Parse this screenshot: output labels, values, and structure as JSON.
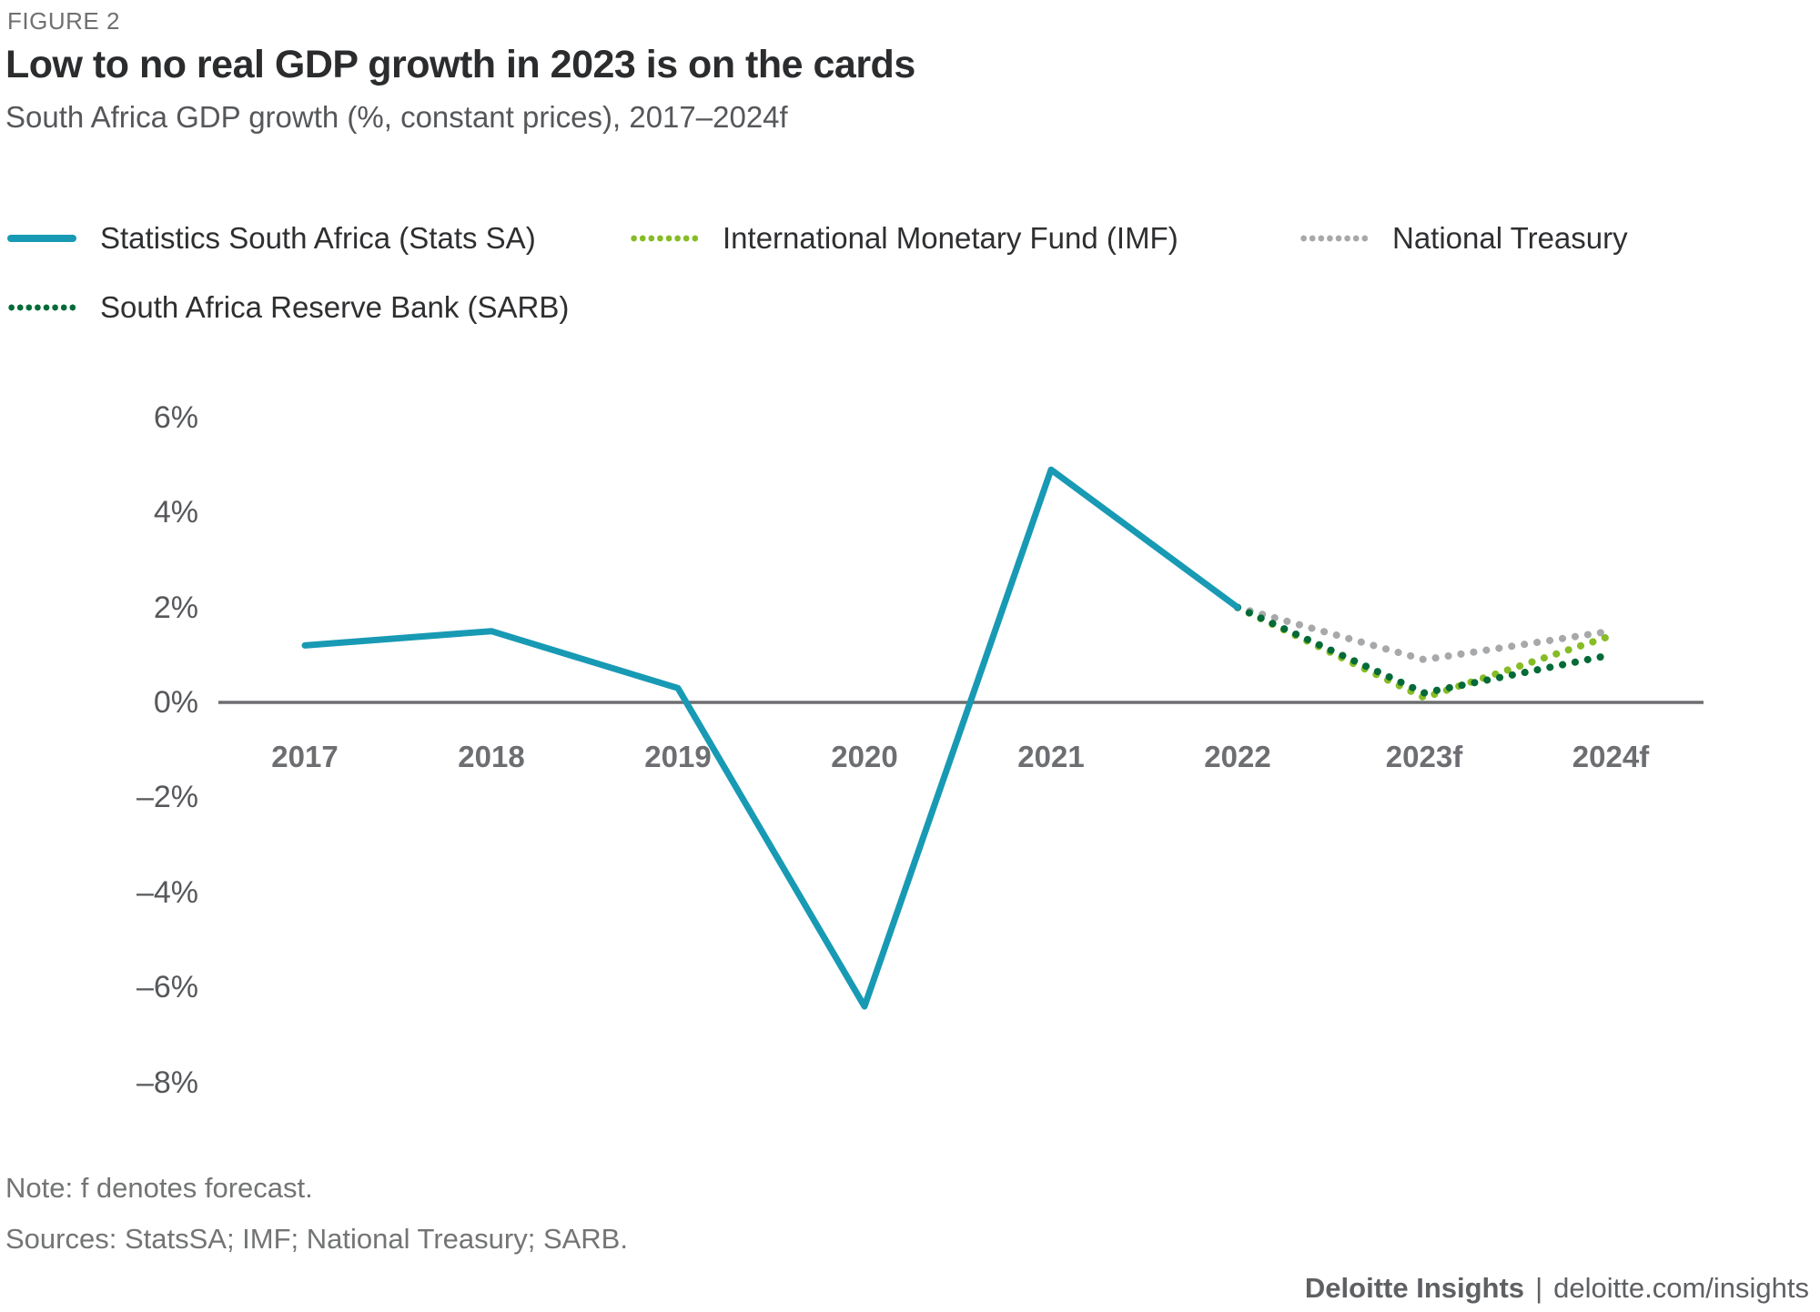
{
  "figure_label": "FIGURE 2",
  "title": "Low to no real GDP growth in 2023 is on the cards",
  "subtitle": "South Africa GDP growth (%, constant prices), 2017–2024f",
  "legend": [
    {
      "label": "Statistics South Africa (Stats SA)",
      "style": "solid",
      "color": "#189ab4"
    },
    {
      "label": "International Monetary Fund (IMF)",
      "style": "dotted",
      "color": "#86bc25"
    },
    {
      "label": "National Treasury",
      "style": "dotted",
      "color": "#a7a8aa"
    },
    {
      "label": "South Africa Reserve Bank (SARB)",
      "style": "dotted",
      "color": "#046a38"
    }
  ],
  "chart_data": {
    "type": "line",
    "title": "Low to no real GDP growth in 2023 is on the cards",
    "subtitle": "South Africa GDP growth (%, constant prices), 2017–2024f",
    "categories": [
      "2017",
      "2018",
      "2019",
      "2020",
      "2021",
      "2022",
      "2023f",
      "2024f"
    ],
    "series": [
      {
        "name": "National Treasury",
        "color": "#a7a8aa",
        "style": "dotted",
        "values": [
          null,
          null,
          null,
          null,
          null,
          2.0,
          0.9,
          1.5
        ]
      },
      {
        "name": "International Monetary Fund (IMF)",
        "color": "#86bc25",
        "style": "dotted",
        "values": [
          null,
          null,
          null,
          null,
          null,
          2.0,
          0.1,
          1.4
        ]
      },
      {
        "name": "South Africa Reserve Bank (SARB)",
        "color": "#046a38",
        "style": "dotted",
        "values": [
          null,
          null,
          null,
          null,
          null,
          2.0,
          0.2,
          1.0
        ]
      },
      {
        "name": "Statistics South Africa (Stats SA)",
        "color": "#189ab4",
        "style": "solid",
        "values": [
          1.2,
          1.5,
          0.3,
          -6.4,
          4.9,
          2.0,
          null,
          null
        ]
      }
    ],
    "xlabel": "",
    "ylabel": "GDP growth (%, constant prices)",
    "ylim": [
      -8.5,
      6.5
    ],
    "yticks": [
      6,
      4,
      2,
      0,
      -2,
      -4,
      -6,
      -8
    ],
    "ytick_labels": [
      "6%",
      "4%",
      "2%",
      "0%",
      "–2%",
      "–4%",
      "–6%",
      "–8%"
    ],
    "grid": false,
    "legend_position": "top",
    "axis_color": "#6d6e71"
  },
  "note": "Note: f denotes forecast.",
  "sources": "Sources: StatsSA; IMF; National Treasury; SARB.",
  "footer": {
    "brand": "Deloitte Insights",
    "separator": "|",
    "url": "deloitte.com/insights"
  }
}
